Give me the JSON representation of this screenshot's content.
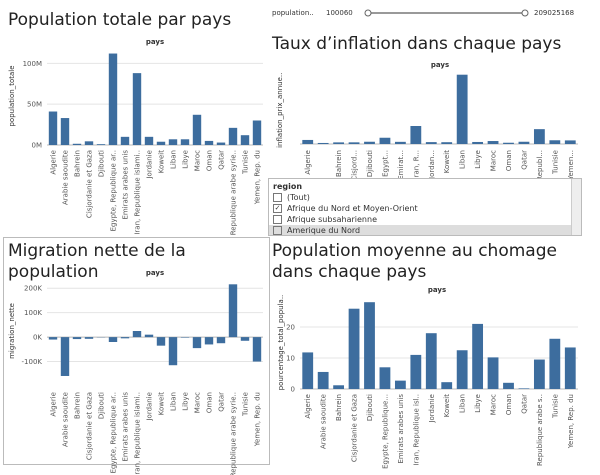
{
  "chart_data": [
    {
      "type": "bar",
      "title": "Population totale par pays",
      "x_label": "pays",
      "y_label": "population_totale",
      "color": "#3d6d9e",
      "categories": [
        "Algerie",
        "Arabie saoudite",
        "Bahrein",
        "Cisjordanie et Gaza",
        "Djibouti",
        "Egypte, Republique ar..",
        "Emirats arabes unis",
        "Iran, Republique islami..",
        "Jordanie",
        "Koweit",
        "Liban",
        "Libye",
        "Maroc",
        "Oman",
        "Qatar",
        "Republique arabe syrie..",
        "Tunisie",
        "Yemen, Rep. du"
      ],
      "values": [
        41000000,
        33000000,
        1500000,
        4500000,
        1000000,
        112000000,
        10000000,
        88000000,
        10000000,
        4000000,
        7000000,
        7000000,
        37000000,
        5000000,
        3000000,
        21000000,
        12000000,
        30000000
      ],
      "ylim": [
        0,
        120000000
      ],
      "yticks": [
        {
          "value": 0,
          "label": "0M"
        },
        {
          "value": 50000000,
          "label": "50M"
        },
        {
          "value": 100000000,
          "label": "100M"
        }
      ]
    },
    {
      "type": "bar",
      "title": "Taux d’inflation dans chaque pays",
      "x_label": "pays",
      "y_label": "inflation_prix_annue..",
      "color": "#3d6d9e",
      "categories": [
        "Algerie",
        null,
        "Bahrein",
        "Cisjord...",
        "Djibouti",
        "Egypt...",
        "Emirat...",
        "Iran, R...",
        "Jordan...",
        "Koweit",
        "Liban",
        "Libye",
        "Maroc",
        "Oman",
        "Qatar",
        "Republ...",
        "Tunisie",
        "Yemen..."
      ],
      "values": [
        9,
        2.3,
        3.6,
        3.7,
        5,
        13.9,
        4.8,
        40,
        4.2,
        4,
        154,
        4.5,
        6.6,
        2.8,
        5,
        33,
        8.3,
        8
      ],
      "ylim": [
        -10,
        160
      ]
    },
    {
      "type": "bar",
      "title": "Migration nette de la population",
      "x_label": "pays",
      "y_label": "migration_nette",
      "color": "#3d6d9e",
      "categories": [
        "Algerie",
        "Arabie saoudite",
        "Bahrein",
        "Cisjordanie et Gaza",
        "Djibouti",
        "Egypte, Republique ar..",
        "Emirats arabes unis",
        "Iran, Republique islami..",
        "Jordanie",
        "Koweit",
        "Liban",
        "Libye",
        "Maroc",
        "Oman",
        "Qatar",
        "Republique arabe syrie..",
        "Tunisie",
        "Yemen, Rep. du"
      ],
      "values": [
        -10000,
        -159000,
        -8000,
        -7000,
        -1000,
        -20000,
        -5000,
        25000,
        10000,
        -35000,
        -115000,
        -2000,
        -45000,
        -30000,
        -25000,
        216000,
        -15000,
        -100000
      ],
      "ylim": [
        -200000,
        250000
      ],
      "yticks": [
        {
          "value": 200000,
          "label": "200K"
        },
        {
          "value": 100000,
          "label": "100K"
        },
        {
          "value": 0,
          "label": "0K"
        },
        {
          "value": -100000,
          "label": "-100K"
        }
      ]
    },
    {
      "type": "bar",
      "title": "Population moyenne au chomage dans chaque pays",
      "x_label": "pays",
      "y_label": "pourcentage_total_popula..",
      "color": "#3d6d9e",
      "categories": [
        "Algerie",
        "Arabie saoudite",
        "Bahrein",
        "Cisjordanie et Gaza",
        "Djibouti",
        "Egypte, Republique...",
        "Emirats arabes unis",
        "Iran, Republique isl..",
        "Jordanie",
        "Koweit",
        "Liban",
        "Libye",
        "Maroc",
        "Oman",
        "Qatar",
        "Republique arabe s..",
        "Tunisie",
        "Yemen, Rep. du"
      ],
      "values": [
        11.8,
        5.5,
        1.2,
        25.9,
        28,
        7,
        2.7,
        11,
        18,
        2.2,
        12.5,
        21,
        10.2,
        2,
        0.2,
        9.5,
        16.2,
        13.4
      ],
      "ylim": [
        0,
        30
      ],
      "yticks": [
        0,
        10,
        20
      ]
    }
  ],
  "slider": {
    "label": "population..",
    "min": "100060",
    "max": "209025168"
  },
  "filter": {
    "title": "region",
    "items": [
      "(Tout)",
      "Afrique du Nord et Moyen-Orient",
      "Afrique subsaharienne",
      "Amerique du Nord"
    ],
    "checked": [
      false,
      true,
      false,
      false
    ]
  }
}
